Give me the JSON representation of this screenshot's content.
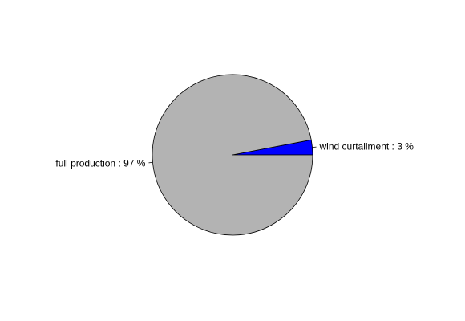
{
  "chart_data": {
    "type": "pie",
    "title": "",
    "slices": [
      {
        "label": "wind curtailment : 3 %",
        "value": 3,
        "color": "#0000ff"
      },
      {
        "label": "full production : 97 %",
        "value": 97,
        "color": "#b3b3b3"
      }
    ],
    "start_angle_deg": 0,
    "direction": "counterclockwise",
    "legend": "none"
  }
}
